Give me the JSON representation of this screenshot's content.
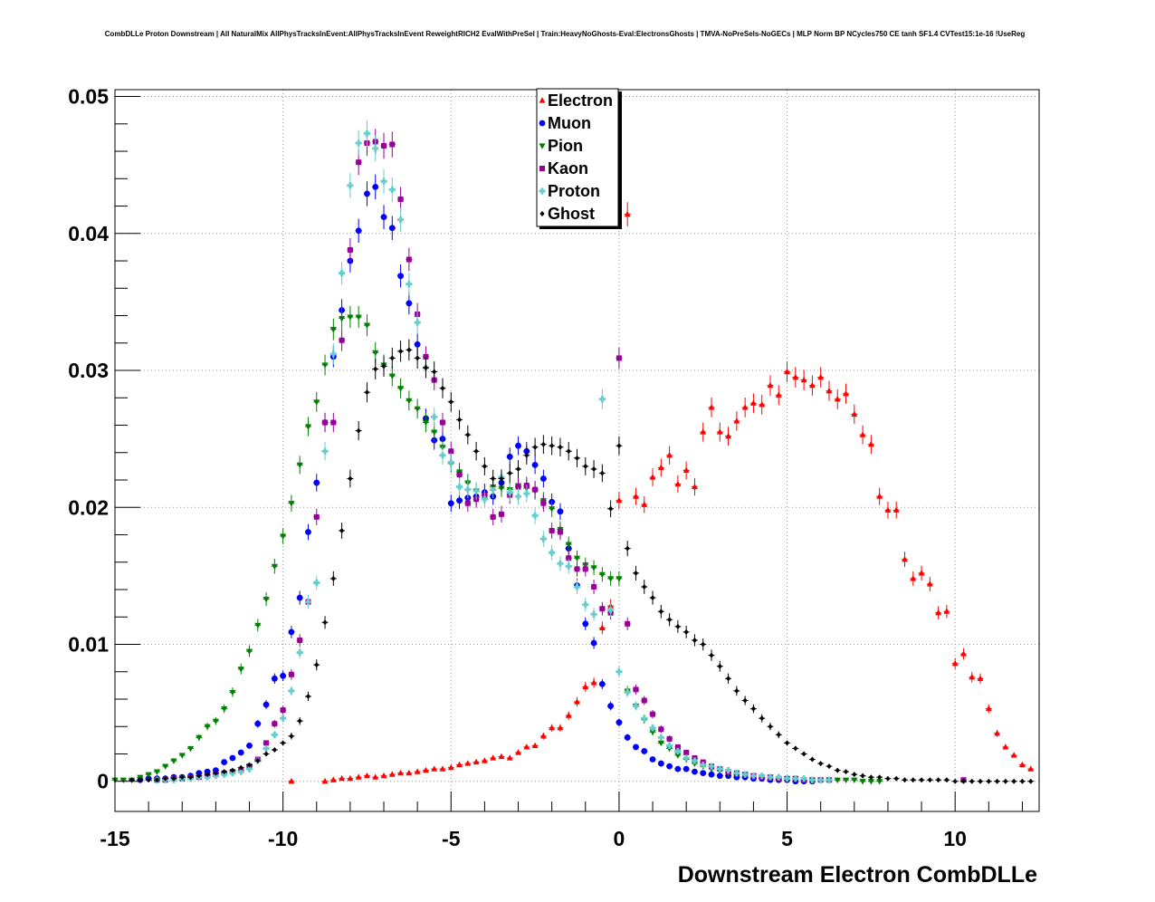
{
  "chart_data": {
    "type": "scatter",
    "title": "CombDLLe Proton Downstream | All NaturalMix AllPhysTracksInEvent:AllPhysTracksInEvent ReweightRICH2 EvalWithPreSel | Train:HeavyNoGhosts-Eval:ElectronsGhosts | TMVA-NoPreSels-NoGECs | MLP Norm BP NCycles750 CE tanh SF1.4 CVTest15:1e-16 !UseReg",
    "xlabel": "Downstream Electron CombDLLe",
    "ylabel": "",
    "xlim": [
      -15.0,
      12.5
    ],
    "ylim": [
      -0.0022,
      0.0505
    ],
    "xticks": [
      "-15",
      "-10",
      "-5",
      "0",
      "5",
      "10"
    ],
    "yticks": [
      "0",
      "0.01",
      "0.02",
      "0.03",
      "0.04",
      "0.05"
    ],
    "grid": true,
    "legend_position": "top-center",
    "series": [
      {
        "name": "Electron",
        "color": "#ff0000",
        "marker": "triangle-up",
        "x": [
          -9.75,
          -8.75,
          -8.5,
          -8.25,
          -8.0,
          -7.75,
          -7.5,
          -7.25,
          -7.0,
          -6.75,
          -6.5,
          -6.25,
          -6.0,
          -5.75,
          -5.5,
          -5.25,
          -5.0,
          -4.75,
          -4.5,
          -4.25,
          -4.0,
          -3.75,
          -3.5,
          -3.25,
          -3.0,
          -2.75,
          -2.5,
          -2.25,
          -2.0,
          -1.75,
          -1.5,
          -1.25,
          -1.0,
          -0.75,
          -0.5,
          -0.25,
          0.0,
          0.25,
          0.5,
          0.75,
          1.0,
          1.25,
          1.5,
          1.75,
          2.0,
          2.25,
          2.5,
          2.75,
          3.0,
          3.25,
          3.5,
          3.75,
          4.0,
          4.25,
          4.5,
          4.75,
          5.0,
          5.25,
          5.5,
          5.75,
          6.0,
          6.25,
          6.5,
          6.75,
          7.0,
          7.25,
          7.5,
          7.75,
          8.0,
          8.25,
          8.5,
          8.75,
          9.0,
          9.25,
          9.5,
          9.75,
          10.0,
          10.25,
          10.5,
          10.75,
          11.0,
          11.25,
          11.5,
          11.75,
          12.0,
          12.25
        ],
        "y": [
          0.0,
          0.0,
          0.0001,
          0.0002,
          0.0002,
          0.0003,
          0.0004,
          0.0003,
          0.0004,
          0.0005,
          0.0006,
          0.0006,
          0.0007,
          0.0008,
          0.0009,
          0.0009,
          0.001,
          0.0012,
          0.0013,
          0.0014,
          0.0015,
          0.0017,
          0.0018,
          0.0017,
          0.0021,
          0.0025,
          0.0026,
          0.0033,
          0.0039,
          0.0039,
          0.0048,
          0.0058,
          0.0069,
          0.0072,
          0.0112,
          0.0128,
          0.0205,
          0.0414,
          0.0208,
          0.0202,
          0.0222,
          0.0229,
          0.0238,
          0.0217,
          0.0227,
          0.0215,
          0.0255,
          0.0273,
          0.0255,
          0.0252,
          0.0263,
          0.0273,
          0.0276,
          0.0275,
          0.0289,
          0.0282,
          0.0299,
          0.0295,
          0.0293,
          0.0289,
          0.0295,
          0.0285,
          0.0279,
          0.0283,
          0.0268,
          0.0253,
          0.0246,
          0.0208,
          0.0198,
          0.0198,
          0.0162,
          0.0148,
          0.0152,
          0.0144,
          0.0123,
          0.0124,
          0.0086,
          0.0093,
          0.0076,
          0.0075,
          0.0053,
          0.0035,
          0.0025,
          0.0019,
          0.0012,
          0.0009
        ]
      },
      {
        "name": "Muon",
        "color": "#0000ff",
        "marker": "circle",
        "x": [
          -14.25,
          -14.0,
          -13.75,
          -13.5,
          -13.25,
          -13.0,
          -12.75,
          -12.5,
          -12.25,
          -12.0,
          -11.75,
          -11.5,
          -11.25,
          -11.0,
          -10.75,
          -10.5,
          -10.25,
          -10.0,
          -9.75,
          -9.5,
          -9.25,
          -9.0,
          -8.75,
          -8.5,
          -8.25,
          -8.0,
          -7.75,
          -7.5,
          -7.25,
          -7.0,
          -6.75,
          -6.5,
          -6.25,
          -6.0,
          -5.75,
          -5.5,
          -5.25,
          -5.0,
          -4.75,
          -4.5,
          -4.25,
          -4.0,
          -3.75,
          -3.5,
          -3.25,
          -3.0,
          -2.75,
          -2.5,
          -2.25,
          -2.0,
          -1.75,
          -1.5,
          -1.25,
          -1.0,
          -0.75,
          -0.5,
          -0.25,
          0.0,
          0.25,
          0.5,
          0.75,
          1.0,
          1.25,
          1.5,
          1.75,
          2.0,
          2.25,
          2.5,
          2.75,
          3.0,
          3.25,
          3.5,
          3.75,
          4.0,
          4.25,
          4.5,
          4.75,
          5.0,
          5.25,
          5.5,
          5.75
        ],
        "y": [
          0.0001,
          0.0002,
          0.0002,
          0.0002,
          0.0003,
          0.0003,
          0.0004,
          0.0006,
          0.0007,
          0.0008,
          0.0014,
          0.0017,
          0.0021,
          0.0026,
          0.0042,
          0.0056,
          0.0075,
          0.0077,
          0.0109,
          0.0134,
          0.0182,
          0.0218,
          0.0262,
          0.031,
          0.0344,
          0.038,
          0.0402,
          0.0429,
          0.0434,
          0.0412,
          0.0404,
          0.0369,
          0.0349,
          0.0319,
          0.0265,
          0.0249,
          0.025,
          0.0203,
          0.0205,
          0.0207,
          0.0208,
          0.0211,
          0.0208,
          0.0218,
          0.0237,
          0.0245,
          0.0241,
          0.0231,
          0.0221,
          0.0204,
          0.0197,
          0.017,
          0.0143,
          0.0115,
          0.0101,
          0.0071,
          0.0055,
          0.0043,
          0.0032,
          0.0025,
          0.0022,
          0.0016,
          0.0013,
          0.0011,
          0.0009,
          0.0009,
          0.0007,
          0.0006,
          0.0005,
          0.0004,
          0.0004,
          0.0003,
          0.0003,
          0.0002,
          0.0002,
          0.0001,
          0.0001,
          0.0001,
          0.0,
          0.0,
          0.0
        ]
      },
      {
        "name": "Pion",
        "color": "#008000",
        "marker": "triangle-down",
        "x": [
          -15.0,
          -14.75,
          -14.5,
          -14.25,
          -14.0,
          -13.75,
          -13.5,
          -13.25,
          -13.0,
          -12.75,
          -12.5,
          -12.25,
          -12.0,
          -11.75,
          -11.5,
          -11.25,
          -11.0,
          -10.75,
          -10.5,
          -10.25,
          -10.0,
          -9.75,
          -9.5,
          -9.25,
          -9.0,
          -8.75,
          -8.5,
          -8.25,
          -8.0,
          -7.75,
          -7.5,
          -7.25,
          -7.0,
          -6.75,
          -6.5,
          -6.25,
          -6.0,
          -5.75,
          -5.5,
          -5.25,
          -5.0,
          -4.75,
          -4.5,
          -4.25,
          -4.0,
          -3.75,
          -3.5,
          -3.25,
          -3.0,
          -2.75,
          -2.5,
          -2.25,
          -2.0,
          -1.75,
          -1.5,
          -1.25,
          -1.0,
          -0.75,
          -0.5,
          -0.25,
          0.0,
          0.25,
          0.5,
          0.75,
          1.0,
          1.25,
          1.5,
          1.75,
          2.0,
          2.25,
          2.5,
          2.75,
          3.0,
          3.25,
          3.5,
          3.75,
          4.0,
          4.25,
          4.5,
          4.75,
          5.0,
          5.25,
          5.5,
          5.75,
          6.0,
          6.25,
          6.5,
          6.75,
          7.0,
          7.25,
          7.5,
          7.75
        ],
        "y": [
          0.0001,
          0.0001,
          0.0001,
          0.0003,
          0.0005,
          0.0007,
          0.0011,
          0.0015,
          0.0019,
          0.0024,
          0.0032,
          0.004,
          0.0044,
          0.0053,
          0.0065,
          0.0082,
          0.0095,
          0.0114,
          0.0133,
          0.0157,
          0.0179,
          0.0203,
          0.0231,
          0.0259,
          0.0277,
          0.0304,
          0.033,
          0.0338,
          0.0339,
          0.0339,
          0.0333,
          0.0313,
          0.0304,
          0.0296,
          0.0287,
          0.0278,
          0.0272,
          0.0262,
          0.0255,
          0.0244,
          0.0232,
          0.0226,
          0.0218,
          0.0212,
          0.0209,
          0.0215,
          0.0214,
          0.0213,
          0.0216,
          0.0214,
          0.0212,
          0.0205,
          0.0199,
          0.0184,
          0.0173,
          0.0163,
          0.0158,
          0.0156,
          0.0151,
          0.0148,
          0.0148,
          0.0066,
          0.0055,
          0.0045,
          0.0036,
          0.0028,
          0.0024,
          0.0019,
          0.0016,
          0.0013,
          0.0011,
          0.0009,
          0.0008,
          0.0006,
          0.0005,
          0.0005,
          0.0004,
          0.0003,
          0.0003,
          0.0002,
          0.0002,
          0.0002,
          0.0001,
          0.0001,
          0.0001,
          0.0001,
          0.0001,
          0.0001,
          0.0001,
          0.0,
          0.0,
          0.0
        ]
      },
      {
        "name": "Kaon",
        "color": "#990099",
        "marker": "square",
        "x": [
          -13.75,
          -13.5,
          -13.25,
          -13.0,
          -12.75,
          -12.5,
          -12.25,
          -12.0,
          -11.75,
          -11.5,
          -11.25,
          -11.0,
          -10.75,
          -10.5,
          -10.25,
          -10.0,
          -9.75,
          -9.5,
          -9.25,
          -9.0,
          -8.75,
          -8.5,
          -8.25,
          -8.0,
          -7.75,
          -7.5,
          -7.25,
          -7.0,
          -6.75,
          -6.5,
          -6.25,
          -6.0,
          -5.75,
          -5.5,
          -5.25,
          -5.0,
          -4.75,
          -4.5,
          -4.25,
          -4.0,
          -3.75,
          -3.5,
          -3.25,
          -3.0,
          -2.75,
          -2.5,
          -2.25,
          -2.0,
          -1.75,
          -1.5,
          -1.25,
          -1.0,
          -0.75,
          -0.5,
          -0.25,
          0.0,
          0.25,
          0.5,
          0.75,
          1.0,
          1.25,
          1.5,
          1.75,
          2.0,
          2.25,
          2.5,
          2.75,
          3.0,
          3.25,
          3.5,
          3.75,
          4.0,
          4.25,
          4.5,
          4.75,
          5.0,
          5.25,
          5.5,
          5.75,
          6.0,
          6.25,
          10.25
        ],
        "y": [
          0.0001,
          0.0001,
          0.0002,
          0.0002,
          0.0003,
          0.0003,
          0.0004,
          0.0005,
          0.0006,
          0.0007,
          0.0008,
          0.0011,
          0.0016,
          0.0028,
          0.0042,
          0.0052,
          0.0078,
          0.0103,
          0.0131,
          0.0193,
          0.0262,
          0.0262,
          0.0322,
          0.0388,
          0.0452,
          0.0466,
          0.0467,
          0.0464,
          0.0465,
          0.0425,
          0.0381,
          0.0341,
          0.031,
          0.0293,
          0.0262,
          0.0241,
          0.0224,
          0.0203,
          0.0206,
          0.0209,
          0.0193,
          0.0195,
          0.0209,
          0.0215,
          0.0216,
          0.0213,
          0.0203,
          0.0183,
          0.0182,
          0.0163,
          0.0155,
          0.0155,
          0.0142,
          0.0126,
          0.0123,
          0.0309,
          0.0115,
          0.0067,
          0.0059,
          0.0049,
          0.0038,
          0.0031,
          0.0025,
          0.0021,
          0.0017,
          0.0014,
          0.0011,
          0.0009,
          0.0007,
          0.0006,
          0.0005,
          0.0004,
          0.0003,
          0.0003,
          0.0002,
          0.0002,
          0.0002,
          0.0001,
          0.0001,
          0.0001,
          0.0001,
          0.0001
        ]
      },
      {
        "name": "Proton",
        "color": "#66cccc",
        "marker": "cross",
        "x": [
          -13.75,
          -13.5,
          -13.25,
          -13.0,
          -12.75,
          -12.5,
          -12.25,
          -12.0,
          -11.75,
          -11.5,
          -11.25,
          -11.0,
          -10.75,
          -10.5,
          -10.25,
          -10.0,
          -9.75,
          -9.5,
          -9.25,
          -9.0,
          -8.75,
          -8.5,
          -8.25,
          -8.0,
          -7.75,
          -7.5,
          -7.25,
          -7.0,
          -6.75,
          -6.5,
          -6.25,
          -6.0,
          -5.75,
          -5.5,
          -5.25,
          -5.0,
          -4.75,
          -4.5,
          -4.25,
          -4.0,
          -3.75,
          -3.5,
          -3.25,
          -3.0,
          -2.75,
          -2.5,
          -2.25,
          -2.0,
          -1.75,
          -1.5,
          -1.25,
          -1.0,
          -0.75,
          -0.5,
          -0.25,
          0.0,
          0.25,
          0.5,
          0.75,
          1.0,
          1.25,
          1.5,
          1.75,
          2.0,
          2.25,
          2.5,
          2.75,
          3.0,
          3.25,
          3.5,
          3.75,
          4.0,
          4.25,
          4.5,
          4.75,
          5.0,
          5.25,
          5.5,
          5.75,
          6.0,
          6.25
        ],
        "y": [
          0.0001,
          0.0001,
          0.0001,
          0.0002,
          0.0002,
          0.0003,
          0.0003,
          0.0004,
          0.0005,
          0.0006,
          0.0007,
          0.0009,
          0.0015,
          0.0024,
          0.0034,
          0.0046,
          0.0066,
          0.0094,
          0.0131,
          0.0145,
          0.0241,
          0.0312,
          0.0371,
          0.0435,
          0.0466,
          0.0473,
          0.0462,
          0.0438,
          0.0432,
          0.041,
          0.0363,
          0.0335,
          0.0302,
          0.0266,
          0.0238,
          0.0233,
          0.0215,
          0.0213,
          0.0212,
          0.0206,
          0.0213,
          0.0222,
          0.0211,
          0.0208,
          0.021,
          0.0194,
          0.0177,
          0.0167,
          0.0159,
          0.0157,
          0.0142,
          0.0129,
          0.0122,
          0.0279,
          0.0125,
          0.008,
          0.0065,
          0.0055,
          0.0046,
          0.0039,
          0.0032,
          0.0026,
          0.0022,
          0.0017,
          0.0015,
          0.0012,
          0.0011,
          0.0009,
          0.0008,
          0.0006,
          0.0005,
          0.0004,
          0.0004,
          0.0003,
          0.0003,
          0.0002,
          0.0002,
          0.0002,
          0.0001,
          0.0001,
          0.0001
        ]
      },
      {
        "name": "Ghost",
        "color": "#000000",
        "marker": "diamond",
        "x": [
          -14.5,
          -14.25,
          -14.0,
          -13.75,
          -13.5,
          -13.25,
          -13.0,
          -12.75,
          -12.5,
          -12.25,
          -12.0,
          -11.75,
          -11.5,
          -11.25,
          -11.0,
          -10.75,
          -10.5,
          -10.25,
          -10.0,
          -9.75,
          -9.5,
          -9.25,
          -9.0,
          -8.75,
          -8.5,
          -8.25,
          -8.0,
          -7.75,
          -7.5,
          -7.25,
          -7.0,
          -6.75,
          -6.5,
          -6.25,
          -6.0,
          -5.75,
          -5.5,
          -5.25,
          -5.0,
          -4.75,
          -4.5,
          -4.25,
          -4.0,
          -3.75,
          -3.5,
          -3.25,
          -3.0,
          -2.75,
          -2.5,
          -2.25,
          -2.0,
          -1.75,
          -1.5,
          -1.25,
          -1.0,
          -0.75,
          -0.5,
          -0.25,
          0.0,
          0.25,
          0.5,
          0.75,
          1.0,
          1.25,
          1.5,
          1.75,
          2.0,
          2.25,
          2.5,
          2.75,
          3.0,
          3.25,
          3.5,
          3.75,
          4.0,
          4.25,
          4.5,
          4.75,
          5.0,
          5.25,
          5.5,
          5.75,
          6.0,
          6.25,
          6.5,
          6.75,
          7.0,
          7.25,
          7.5,
          7.75,
          8.0,
          8.25,
          8.5,
          8.75,
          9.0,
          9.25,
          9.5,
          9.75,
          10.0,
          10.25,
          10.5,
          10.75,
          11.0,
          11.25,
          11.5,
          11.75,
          12.0,
          12.25
        ],
        "y": [
          0.0001,
          0.0001,
          0.0001,
          0.0001,
          0.0002,
          0.0002,
          0.0003,
          0.0003,
          0.0004,
          0.0005,
          0.0006,
          0.0007,
          0.0008,
          0.001,
          0.0012,
          0.0015,
          0.002,
          0.0023,
          0.0028,
          0.0033,
          0.0044,
          0.0062,
          0.0085,
          0.0116,
          0.0148,
          0.0183,
          0.0221,
          0.0256,
          0.0284,
          0.0301,
          0.0303,
          0.0309,
          0.0314,
          0.0315,
          0.0309,
          0.0302,
          0.0299,
          0.0287,
          0.0277,
          0.0264,
          0.0253,
          0.0241,
          0.023,
          0.0221,
          0.0221,
          0.0225,
          0.0228,
          0.0238,
          0.0244,
          0.0246,
          0.0245,
          0.0244,
          0.0241,
          0.0236,
          0.023,
          0.0228,
          0.0225,
          0.0199,
          0.0245,
          0.017,
          0.0152,
          0.0142,
          0.0134,
          0.0124,
          0.0118,
          0.0113,
          0.0109,
          0.0103,
          0.01,
          0.0092,
          0.0084,
          0.0075,
          0.0066,
          0.0059,
          0.0053,
          0.0046,
          0.004,
          0.0034,
          0.0028,
          0.0024,
          0.002,
          0.0016,
          0.0013,
          0.0011,
          0.0008,
          0.0007,
          0.0005,
          0.0004,
          0.0003,
          0.0003,
          0.0002,
          0.0002,
          0.0001,
          0.0001,
          0.0001,
          0.0001,
          0.0001,
          0.0001,
          0.0,
          0.0,
          0.0,
          0.0,
          0.0,
          0.0,
          0.0,
          0.0,
          0.0,
          0.0
        ]
      }
    ]
  }
}
